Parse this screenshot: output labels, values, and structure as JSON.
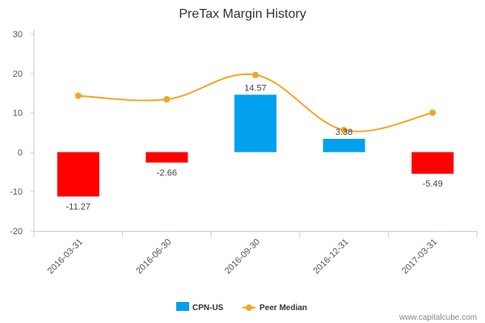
{
  "chart_data": {
    "type": "bar",
    "title": "PreTax Margin History",
    "categories": [
      "2016-03-31",
      "2016-06-30",
      "2016-09-30",
      "2016-12-31",
      "2017-03-31"
    ],
    "series": [
      {
        "name": "CPN-US",
        "type": "bar",
        "values": [
          -11.27,
          -2.66,
          14.57,
          3.38,
          -5.49
        ],
        "data_labels": [
          "-11.27",
          "-2.66",
          "14.57",
          "3.38",
          "-5.49"
        ],
        "positive_color": "#00a0ee",
        "negative_color": "#ff0000"
      },
      {
        "name": "Peer Median",
        "type": "line",
        "values": [
          14.3,
          13.4,
          19.6,
          5.6,
          10.0
        ],
        "color": "#f5a623"
      }
    ],
    "y_ticks": [
      "30",
      "20",
      "10",
      "0",
      "-10",
      "-20"
    ],
    "ylim": [
      -20,
      30
    ],
    "grid": false,
    "legend_position": "bottom-center"
  },
  "credit": "www.capitalcube.com"
}
